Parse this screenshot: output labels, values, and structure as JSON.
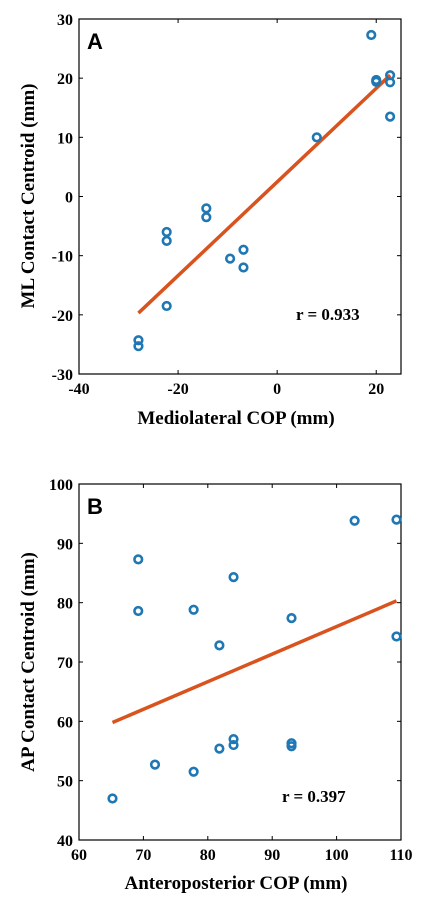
{
  "colors": {
    "points": "#1f77b4",
    "fit_line": "#d9531e",
    "axes": "#000000"
  },
  "chart_data": [
    {
      "type": "scatter",
      "panel_label": "A",
      "xlabel": "Mediolateral COP (mm)",
      "ylabel": "ML Contact Centroid (mm)",
      "xlim": [
        -40,
        25
      ],
      "ylim": [
        -30,
        30
      ],
      "xticks": [
        -40,
        -20,
        0,
        20
      ],
      "yticks": [
        -30,
        -20,
        -10,
        0,
        10,
        20,
        30
      ],
      "grid": false,
      "annotation": "r = 0.933",
      "points": [
        {
          "x": -28,
          "y": -24.3
        },
        {
          "x": -28,
          "y": -25.3
        },
        {
          "x": -22.3,
          "y": -6.0
        },
        {
          "x": -22.3,
          "y": -7.5
        },
        {
          "x": -22.3,
          "y": -18.5
        },
        {
          "x": -14.3,
          "y": -2.0
        },
        {
          "x": -14.3,
          "y": -3.5
        },
        {
          "x": -9.5,
          "y": -10.5
        },
        {
          "x": -6.8,
          "y": -9.0
        },
        {
          "x": -6.8,
          "y": -12.0
        },
        {
          "x": 8.0,
          "y": 10.0
        },
        {
          "x": 19.0,
          "y": 27.3
        },
        {
          "x": 20.0,
          "y": 19.7
        },
        {
          "x": 20.0,
          "y": 19.4
        },
        {
          "x": 22.8,
          "y": 20.5
        },
        {
          "x": 22.8,
          "y": 19.3
        },
        {
          "x": 22.8,
          "y": 13.5
        }
      ],
      "fit_line": {
        "x": [
          -28,
          22.8
        ],
        "y": [
          -19.7,
          20.5
        ]
      }
    },
    {
      "type": "scatter",
      "panel_label": "B",
      "xlabel": "Anteroposterior COP (mm)",
      "ylabel": "AP Contact Centroid (mm)",
      "xlim": [
        60,
        110
      ],
      "ylim": [
        40,
        100
      ],
      "xticks": [
        60,
        70,
        80,
        90,
        100,
        110
      ],
      "yticks": [
        40,
        50,
        60,
        70,
        80,
        90,
        100
      ],
      "grid": false,
      "annotation": "r = 0.397",
      "points": [
        {
          "x": 65.2,
          "y": 47.0
        },
        {
          "x": 69.2,
          "y": 87.3
        },
        {
          "x": 69.2,
          "y": 78.6
        },
        {
          "x": 71.8,
          "y": 52.7
        },
        {
          "x": 77.8,
          "y": 78.8
        },
        {
          "x": 77.8,
          "y": 51.5
        },
        {
          "x": 81.8,
          "y": 72.8
        },
        {
          "x": 81.8,
          "y": 55.4
        },
        {
          "x": 84.0,
          "y": 84.3
        },
        {
          "x": 84.0,
          "y": 57.0
        },
        {
          "x": 84.0,
          "y": 56.0
        },
        {
          "x": 93.0,
          "y": 77.4
        },
        {
          "x": 93.0,
          "y": 56.3
        },
        {
          "x": 93.0,
          "y": 55.8
        },
        {
          "x": 102.8,
          "y": 93.8
        },
        {
          "x": 109.3,
          "y": 94.0
        },
        {
          "x": 109.3,
          "y": 74.3
        }
      ],
      "fit_line": {
        "x": [
          65.2,
          109.3
        ],
        "y": [
          59.8,
          80.3
        ]
      }
    }
  ]
}
